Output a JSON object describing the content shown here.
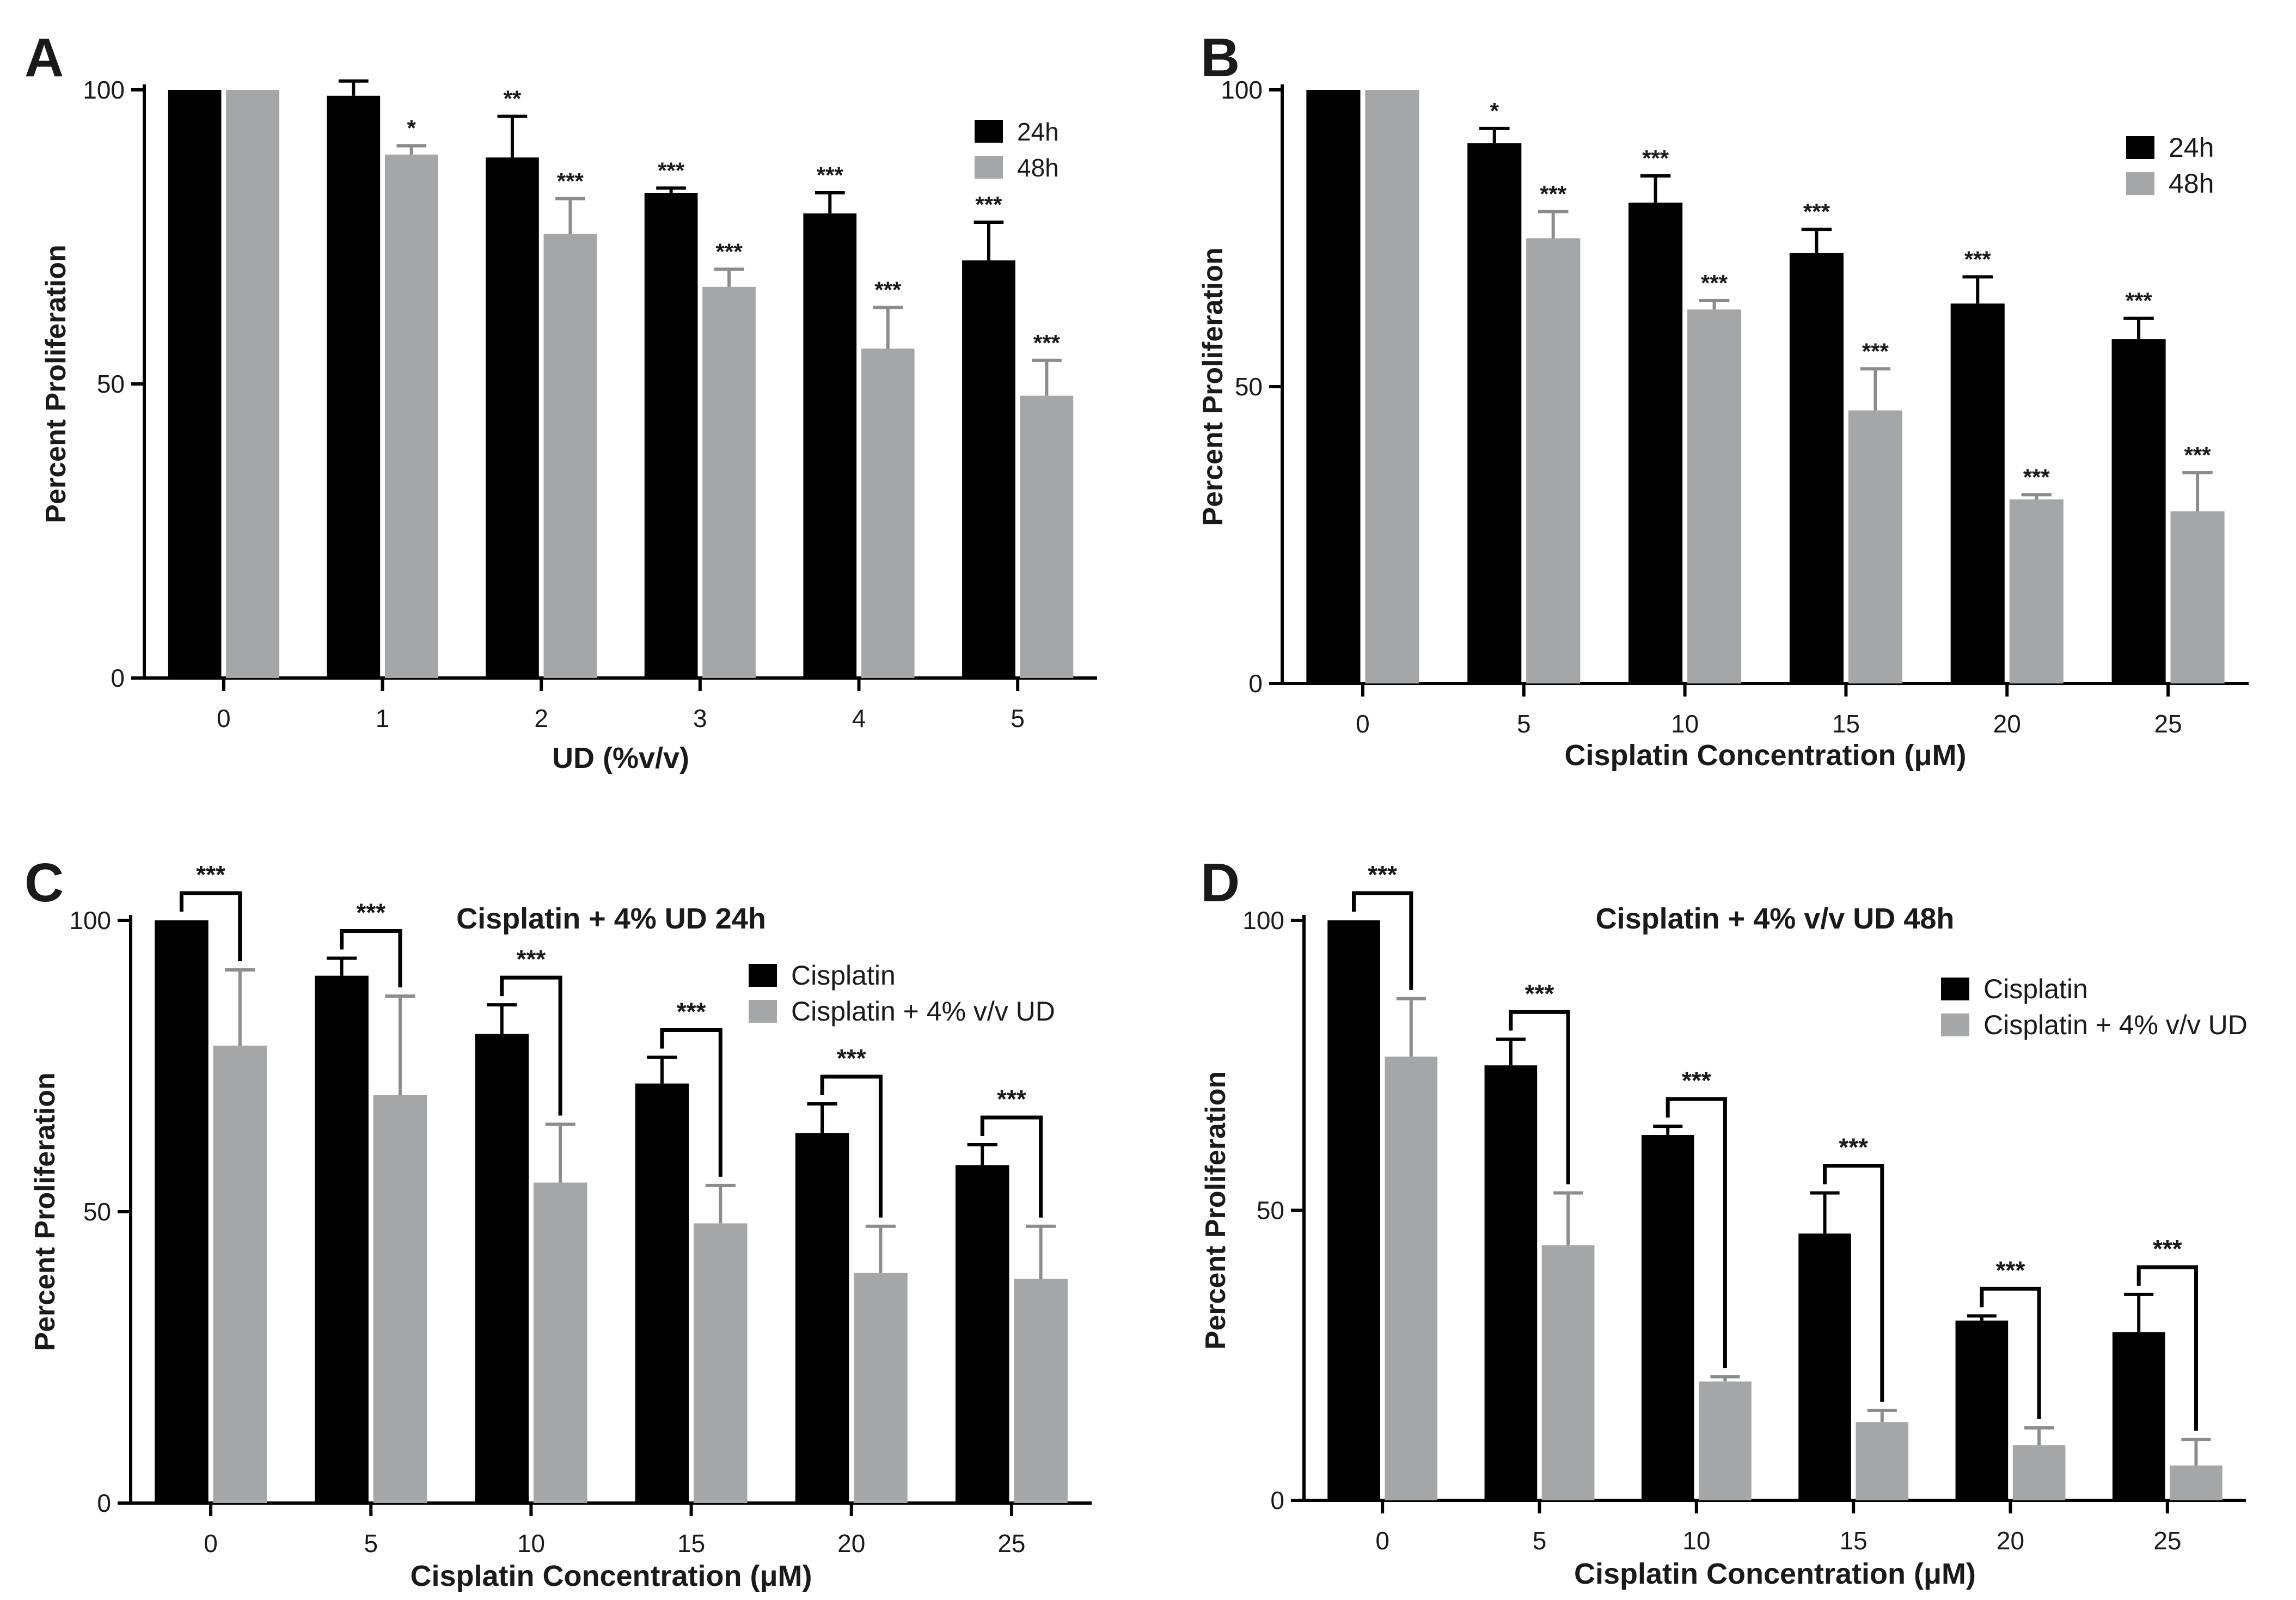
{
  "colors": {
    "black_bar": "#000000",
    "gray_bar": "#a5a6a8",
    "axis": "#000000"
  },
  "chart_data": [
    {
      "panel": "A",
      "type": "bar",
      "title": "",
      "xlabel": "UD (%v/v)",
      "ylabel": "Percent Proliferation",
      "ylim": [
        0,
        100
      ],
      "yticks": [
        "0",
        "50",
        "100"
      ],
      "categories": [
        "0",
        "1",
        "2",
        "3",
        "4",
        "5"
      ],
      "legend_position": "top-right",
      "series": [
        {
          "name": "24h",
          "color": "#000000",
          "values": [
            100,
            99,
            88.5,
            82.5,
            79,
            71
          ],
          "errors": [
            0,
            2.5,
            7,
            0.8,
            3.5,
            6.5
          ]
        },
        {
          "name": "48h",
          "color": "#a5a6a8",
          "values": [
            100,
            89,
            75.5,
            66.5,
            56,
            48
          ],
          "errors": [
            0,
            1.5,
            6,
            3,
            7,
            6
          ]
        }
      ],
      "significance_style": "stars",
      "significance": [
        [
          "",
          "",
          "**",
          "***",
          "***",
          "***"
        ],
        [
          "",
          "*",
          "***",
          "***",
          "***",
          "***"
        ]
      ]
    },
    {
      "panel": "B",
      "type": "bar",
      "title": "",
      "xlabel": "Cisplatin Concentration (μM)",
      "ylabel": "Percent Proliferation",
      "ylim": [
        0,
        100
      ],
      "yticks": [
        "0",
        "50",
        "100"
      ],
      "categories": [
        "0",
        "5",
        "10",
        "15",
        "20",
        "25"
      ],
      "legend_position": "top-right",
      "series": [
        {
          "name": "24h",
          "color": "#000000",
          "values": [
            100,
            91,
            81,
            72.5,
            64,
            58
          ],
          "errors": [
            0,
            2.5,
            4.5,
            4,
            4.5,
            3.5
          ]
        },
        {
          "name": "48h",
          "color": "#a5a6a8",
          "values": [
            100,
            75,
            63,
            46,
            31,
            29
          ],
          "errors": [
            0,
            4.5,
            1.5,
            7,
            0.8,
            6.5
          ]
        }
      ],
      "significance_style": "stars",
      "significance": [
        [
          "",
          "*",
          "***",
          "***",
          "***",
          "***"
        ],
        [
          "",
          "***",
          "***",
          "***",
          "***",
          "***"
        ]
      ]
    },
    {
      "panel": "C",
      "type": "bar",
      "title": "Cisplatin + 4% UD 24h",
      "xlabel": "Cisplatin Concentration (μM)",
      "ylabel": "Percent Proliferation",
      "ylim": [
        0,
        100
      ],
      "yticks": [
        "0",
        "50",
        "100"
      ],
      "categories": [
        "0",
        "5",
        "10",
        "15",
        "20",
        "25"
      ],
      "legend_position": "top-right",
      "series": [
        {
          "name": "Cisplatin",
          "color": "#000000",
          "values": [
            100,
            90.5,
            80.5,
            72,
            63.5,
            58
          ],
          "errors": [
            0,
            3,
            5,
            4.5,
            5,
            3.5
          ]
        },
        {
          "name": "Cisplatin + 4% v/v UD",
          "color": "#a5a6a8",
          "values": [
            78.5,
            70,
            55,
            48,
            39.5,
            38.5
          ],
          "errors": [
            13,
            17,
            10,
            6.5,
            8,
            9
          ]
        }
      ],
      "significance_style": "brackets",
      "brackets": [
        "***",
        "***",
        "***",
        "***",
        "***",
        "***"
      ]
    },
    {
      "panel": "D",
      "type": "bar",
      "title": "Cisplatin + 4% v/v UD 48h",
      "xlabel": "Cisplatin Concentration (μM)",
      "ylabel": "Percent Proliferation",
      "ylim": [
        0,
        100
      ],
      "yticks": [
        "0",
        "50",
        "100"
      ],
      "categories": [
        "0",
        "5",
        "10",
        "15",
        "20",
        "25"
      ],
      "legend_position": "top-right",
      "series": [
        {
          "name": "Cisplatin",
          "color": "#000000",
          "values": [
            100,
            75,
            63,
            46,
            31,
            29
          ],
          "errors": [
            0,
            4.5,
            1.5,
            7,
            0.8,
            6.5
          ]
        },
        {
          "name": "Cisplatin + 4% v/v UD",
          "color": "#a5a6a8",
          "values": [
            76.5,
            44,
            20.5,
            13.5,
            9.5,
            6
          ],
          "errors": [
            10,
            9,
            0.8,
            2,
            3,
            4.5
          ]
        }
      ],
      "significance_style": "brackets",
      "brackets": [
        "***",
        "***",
        "***",
        "***",
        "***",
        "***"
      ]
    }
  ]
}
